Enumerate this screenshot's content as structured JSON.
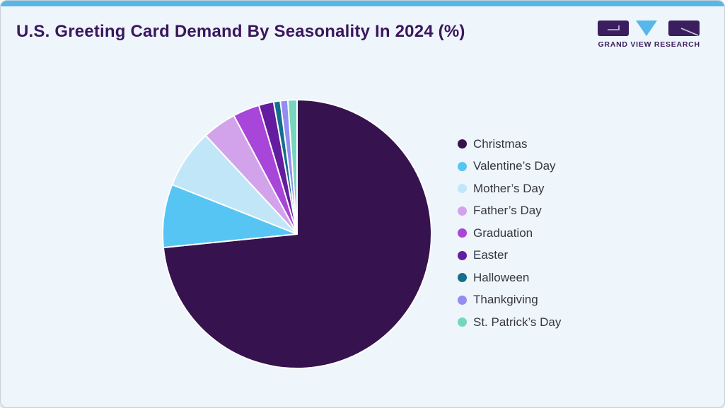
{
  "page": {
    "title": "U.S. Greeting Card Demand By Seasonality In 2024 (%)"
  },
  "logo": {
    "brand": "GRAND VIEW RESEARCH"
  },
  "chart_data": {
    "type": "pie",
    "title": "U.S. Greeting Card Demand By Seasonality In 2024 (%)",
    "unit": "%",
    "categories": [
      "Christmas",
      "Valentine’s Day",
      "Mother’s Day",
      "Father’s Day",
      "Graduation",
      "Easter",
      "Halloween",
      "Thankgiving",
      "St. Patrick’s Day"
    ],
    "values": [
      73.4,
      7.6,
      7.1,
      4.1,
      3.2,
      1.8,
      0.8,
      0.9,
      1.1
    ],
    "colors": [
      "#36124e",
      "#57c5f3",
      "#c1e6f8",
      "#d2a3ea",
      "#a746d8",
      "#641d9e",
      "#156f8c",
      "#948cf2",
      "#74d7bd"
    ],
    "slugs": [
      "christmas",
      "valentines-day",
      "mothers-day",
      "fathers-day",
      "graduation",
      "easter",
      "halloween",
      "thankgiving",
      "st-patricks-day"
    ],
    "start_angle_deg": 0,
    "direction": "clockwise",
    "legend_position": "right",
    "data_labels": "none"
  },
  "theme": {
    "card_bg": "#eef5fb",
    "top_bar_blue": "#59b7e7",
    "title_color": "#3a175c",
    "legend_text_color": "#36363f",
    "logo_purple": "#3b1e5e",
    "logo_blue": "#56b7e8",
    "slice_border": "#ffffff"
  }
}
